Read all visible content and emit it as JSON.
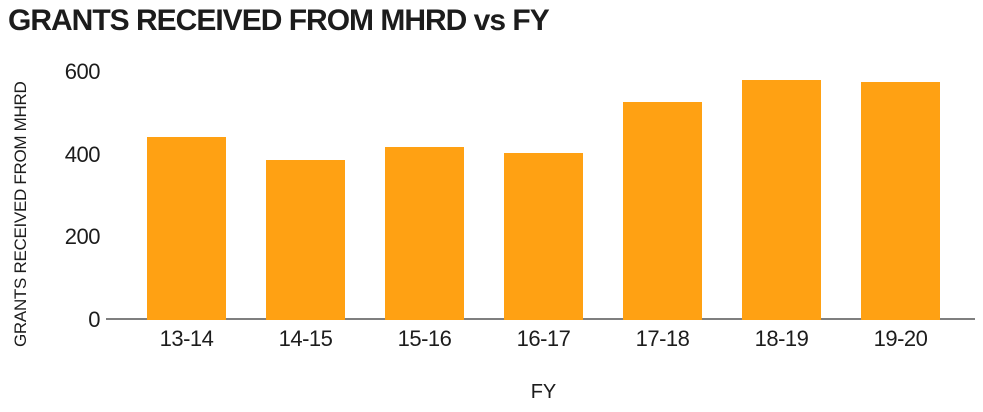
{
  "title": "GRANTS RECEIVED FROM MHRD vs FY",
  "chart_data": {
    "type": "bar",
    "title": "GRANTS RECEIVED FROM MHRD vs FY",
    "categories": [
      "13-14",
      "14-15",
      "15-16",
      "16-17",
      "17-18",
      "18-19",
      "19-20"
    ],
    "values": [
      443,
      388,
      419,
      404,
      527,
      581,
      575
    ],
    "xlabel": "FY",
    "ylabel": "GRANTS RECEIVED FROM MHRD",
    "ylim": [
      0,
      600
    ],
    "yticks": [
      0,
      200,
      400,
      600
    ],
    "grid": false,
    "legend": false,
    "bar_color": "#FFA113",
    "axis_line_color": "#7F7F7F",
    "text_color": "#1C1C1C",
    "background_color": "#FFFFFF"
  }
}
